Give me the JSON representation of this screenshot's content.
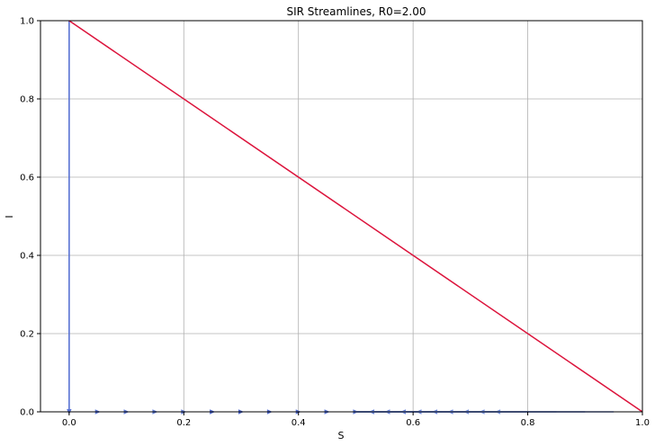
{
  "chart_data": {
    "type": "streamline",
    "title": "SIR Streamlines, R0=2.00",
    "xlabel": "S",
    "ylabel": "I",
    "xlim": [
      -0.05,
      1.0
    ],
    "ylim": [
      0.0,
      1.0
    ],
    "xticks": [
      0.0,
      0.2,
      0.4,
      0.6,
      0.8,
      1.0
    ],
    "yticks": [
      0.0,
      0.2,
      0.4,
      0.6,
      0.8,
      1.0
    ],
    "xtick_labels": [
      "0.0",
      "0.2",
      "0.4",
      "0.6",
      "0.8",
      "1.0"
    ],
    "ytick_labels": [
      "0.0",
      "0.2",
      "0.4",
      "0.6",
      "0.8",
      "1.0"
    ],
    "grid": true,
    "R0": 2.0,
    "boundary_line": {
      "from": [
        0.0,
        1.0
      ],
      "to": [
        1.0,
        0.0
      ]
    },
    "trajectory_start_S": [
      0.0,
      0.05,
      0.1,
      0.15,
      0.2,
      0.25,
      0.3,
      0.35,
      0.4,
      0.45,
      0.5,
      0.55,
      0.6,
      0.65,
      0.7,
      0.75,
      0.8,
      0.85,
      0.9,
      0.95
    ],
    "colors": {
      "boundary": "#dc143c",
      "stream_dark": "#3d57c8",
      "stream_light": "#a9c4f5",
      "grid": "#b0b0b0",
      "axis": "#000000"
    }
  }
}
